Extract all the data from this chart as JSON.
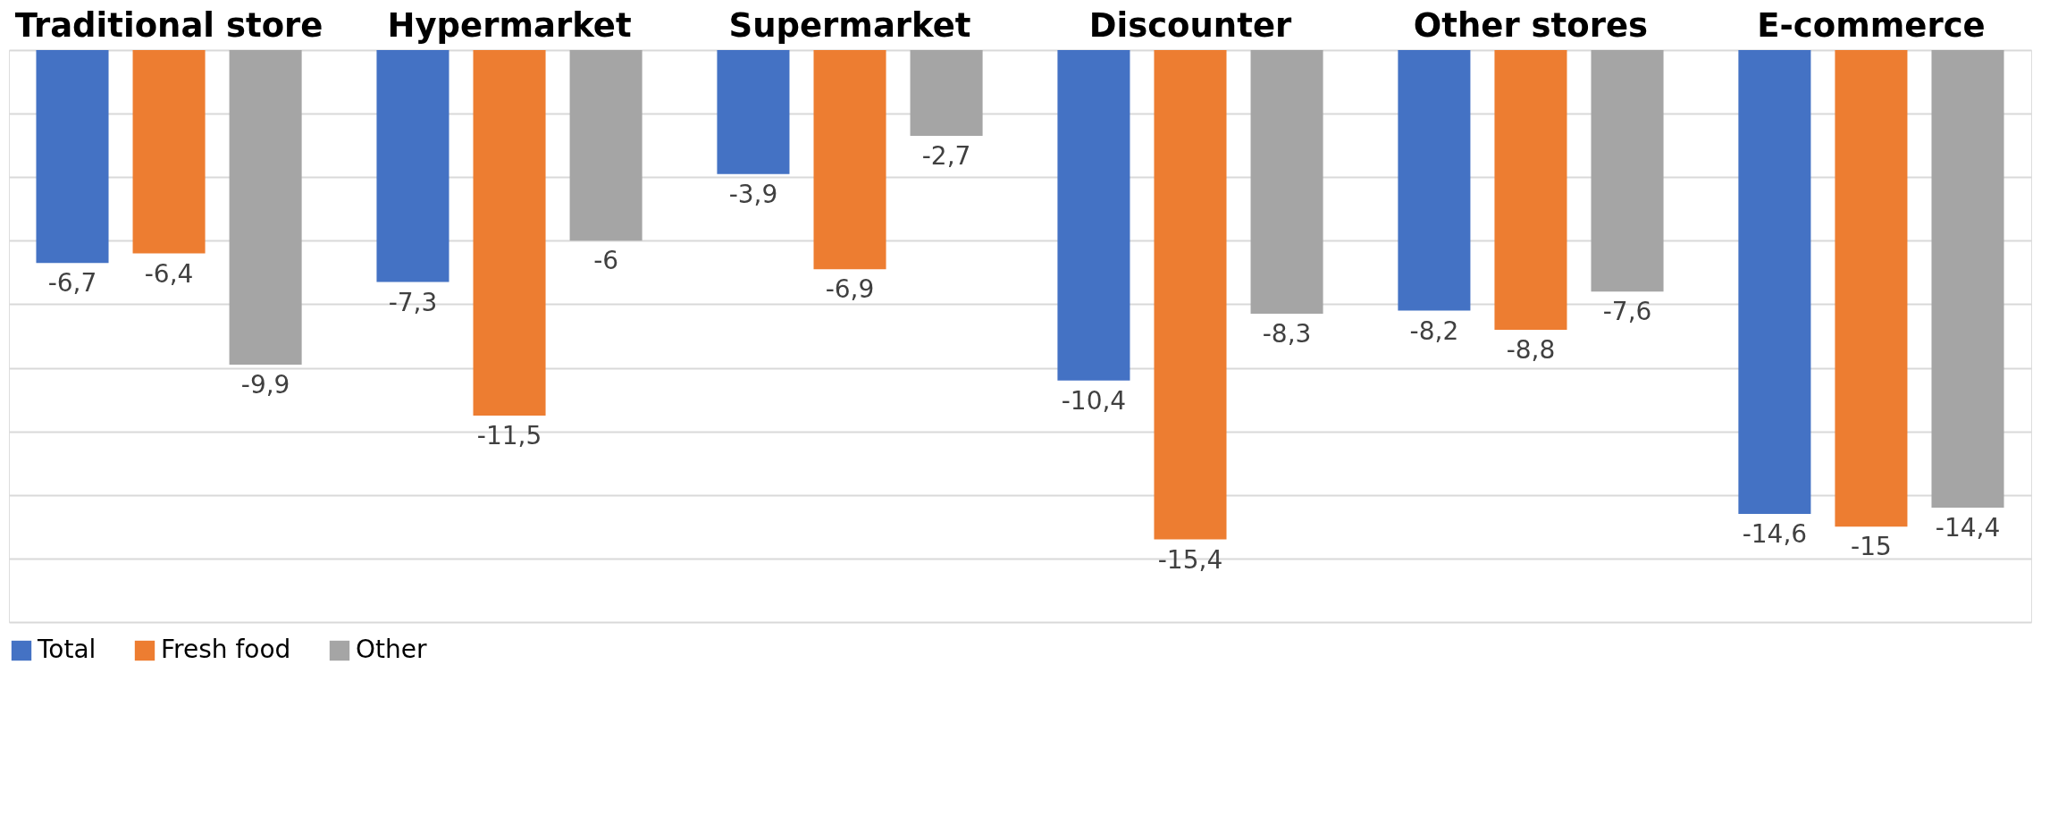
{
  "chart_data": {
    "type": "bar",
    "categories": [
      "Traditional store",
      "Hypermarket",
      "Supermarket",
      "Discounter",
      "Other stores",
      "E-commerce"
    ],
    "series": [
      {
        "name": "Total",
        "color": "#4472c4",
        "values": [
          -6.7,
          -7.3,
          -3.9,
          -10.4,
          -8.2,
          -14.6
        ],
        "value_labels": [
          "-6,7",
          "-7,3",
          "-3,9",
          "-10,4",
          "-8,2",
          "-14,6"
        ]
      },
      {
        "name": "Fresh food",
        "color": "#ed7d31",
        "values": [
          -6.4,
          -11.5,
          -6.9,
          -15.4,
          -8.8,
          -15
        ],
        "value_labels": [
          "-6,4",
          "-11,5",
          "-6,9",
          "-15,4",
          "-8,8",
          "-15"
        ]
      },
      {
        "name": "Other",
        "color": "#a5a5a5",
        "values": [
          -9.9,
          -6,
          -2.7,
          -8.3,
          -7.6,
          -14.4
        ],
        "value_labels": [
          "-9,9",
          "-6",
          "-2,7",
          "-8,3",
          "-7,6",
          "-14,4"
        ]
      }
    ],
    "ylim": [
      -18,
      0
    ],
    "yticks": [
      {
        "value": 0,
        "label": null
      },
      {
        "value": -2,
        "label": null
      },
      {
        "value": -4,
        "label": null
      },
      {
        "value": -6,
        "label": null
      },
      {
        "value": -8,
        "label": null
      },
      {
        "value": -10,
        "label": null
      },
      {
        "value": -12,
        "label": null
      },
      {
        "value": -14,
        "label": null
      },
      {
        "value": -16,
        "label": null
      },
      {
        "value": -18,
        "label": null
      }
    ],
    "grid": "y",
    "legend": "bottom",
    "tick_labels": "x"
  }
}
